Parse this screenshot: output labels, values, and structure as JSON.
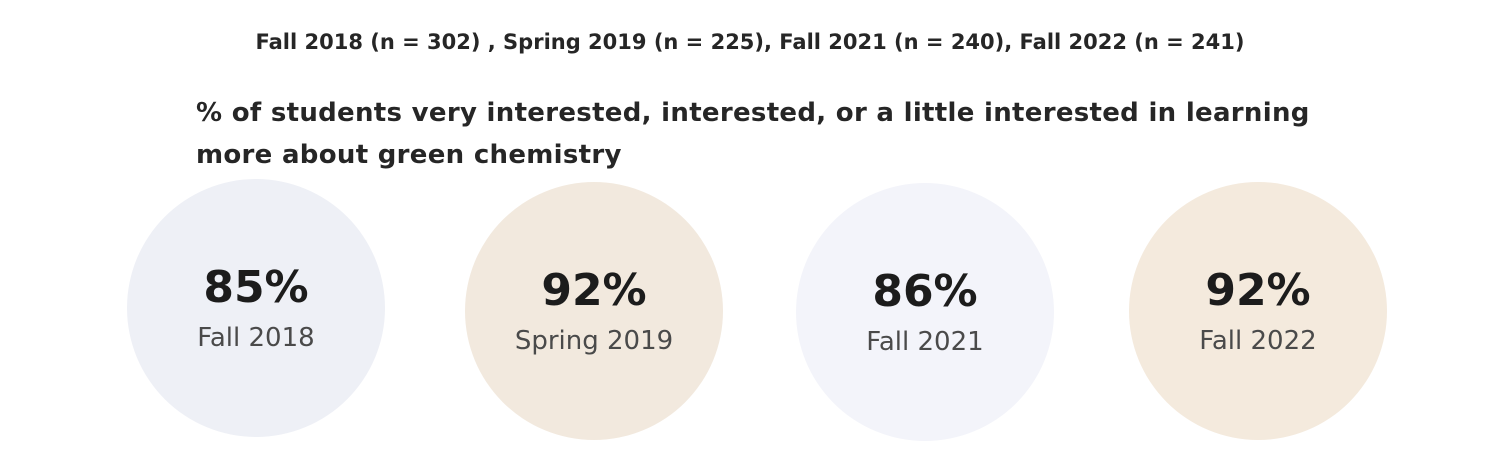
{
  "chart_data": {
    "type": "bubble",
    "subtitle": "Fall 2018 (n = 302) , Spring 2019 (n = 225),  Fall 2021 (n = 240), Fall 2022 (n = 241)",
    "title": "% of students very interested, interested, or a little interested in learning more about green chemistry",
    "categories": [
      "Fall 2018",
      "Spring 2019",
      "Fall 2021",
      "Fall 2022"
    ],
    "values": [
      85,
      92,
      86,
      92
    ],
    "value_labels": [
      "85%",
      "92%",
      "86%",
      "92%"
    ],
    "colors": [
      "#eef0f6",
      "#f2e9de",
      "#f3f4fa",
      "#f4eadd"
    ]
  }
}
